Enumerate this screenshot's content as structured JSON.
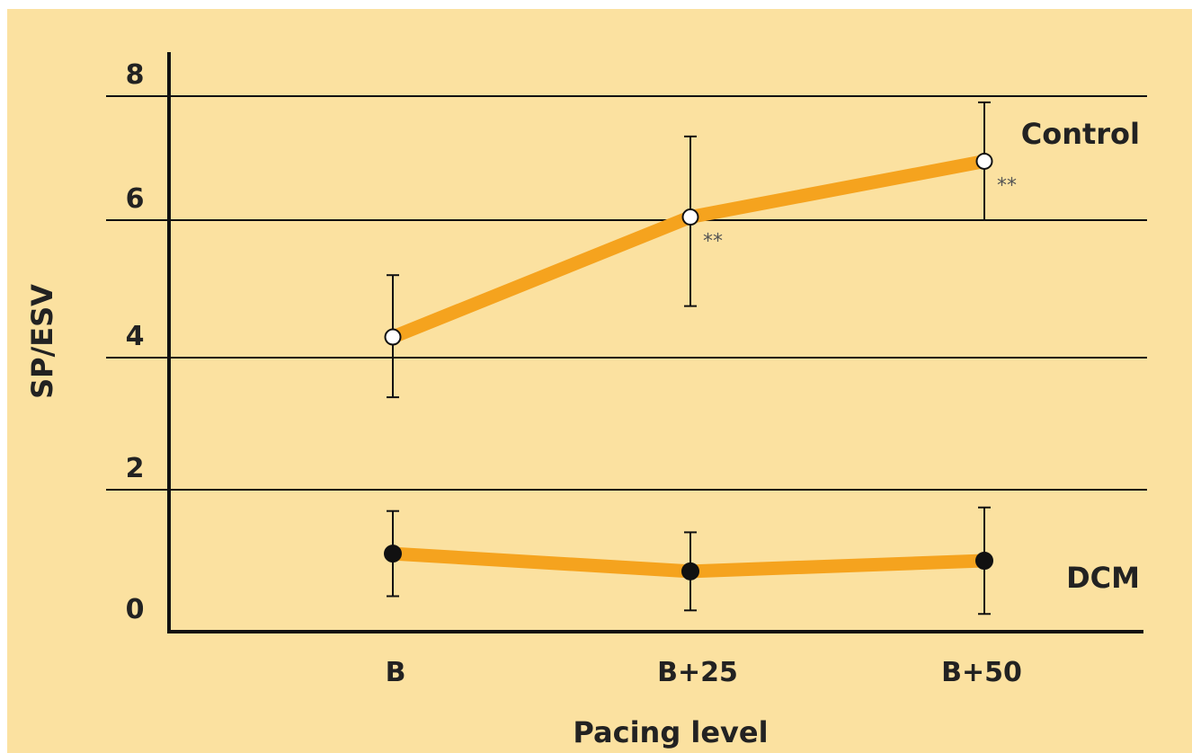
{
  "chart_data": {
    "type": "line",
    "title": "",
    "xlabel": "Pacing level",
    "ylabel": "SP/ESV",
    "categories": [
      "B",
      "B+25",
      "B+50"
    ],
    "yticks": [
      "0",
      "2",
      "4",
      "6",
      "8"
    ],
    "ylim": [
      0,
      8.4
    ],
    "grid": "horizontal",
    "series": [
      {
        "name": "Control",
        "values": [
          4.3,
          6.05,
          6.95
        ],
        "error": [
          0.9,
          1.3,
          0.95
        ],
        "marker": "open-circle",
        "significance": [
          "",
          "**",
          "**"
        ]
      },
      {
        "name": "DCM",
        "values": [
          1.1,
          0.85,
          1.0
        ],
        "error": [
          0.6,
          0.55,
          0.75
        ],
        "marker": "filled-circle",
        "significance": [
          "",
          "",
          ""
        ]
      }
    ],
    "colors": {
      "background": "#fbe1a0",
      "line": "#f5a31e",
      "axis": "#111111",
      "marker_open": "#ffffff",
      "marker_filled": "#111111"
    }
  }
}
